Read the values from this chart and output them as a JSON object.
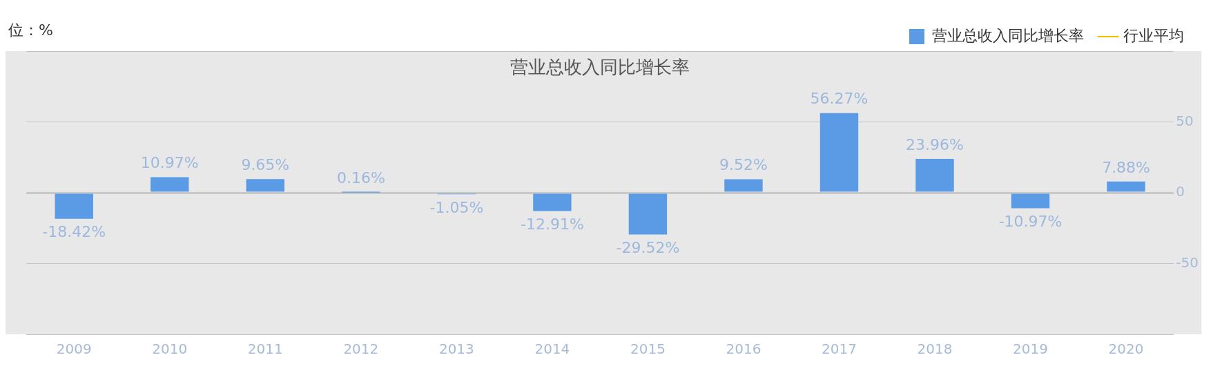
{
  "chart_data": {
    "type": "bar",
    "title": "营业总收入同比增长率",
    "annotations": [
      "位：%"
    ],
    "categories": [
      "2009",
      "2010",
      "2011",
      "2012",
      "2013",
      "2014",
      "2015",
      "2016",
      "2017",
      "2018",
      "2019",
      "2020"
    ],
    "series": [
      {
        "name": "营业总收入同比增长率",
        "color": "#5b9be6",
        "values": [
          -18.42,
          10.97,
          9.65,
          0.16,
          -1.05,
          -12.91,
          -29.52,
          9.52,
          56.27,
          23.96,
          -10.97,
          7.88
        ],
        "value_labels": [
          "-18.42%",
          "10.97%",
          "9.65%",
          "0.16%",
          "-1.05%",
          "-12.91%",
          "-29.52%",
          "9.52%",
          "56.27%",
          "23.96%",
          "-10.97%",
          "7.88%"
        ]
      },
      {
        "name": "行业平均",
        "type": "line",
        "color": "#f0c000",
        "values": [
          null,
          null,
          null,
          null,
          null,
          null,
          null,
          null,
          null,
          null,
          null,
          null
        ]
      }
    ],
    "ylim": [
      -100,
      100
    ],
    "yticks": [
      {
        "value": -100,
        "label": null
      },
      -50,
      0,
      50,
      {
        "value": 100,
        "label": null
      }
    ],
    "grid": "y",
    "legend": "top right"
  }
}
